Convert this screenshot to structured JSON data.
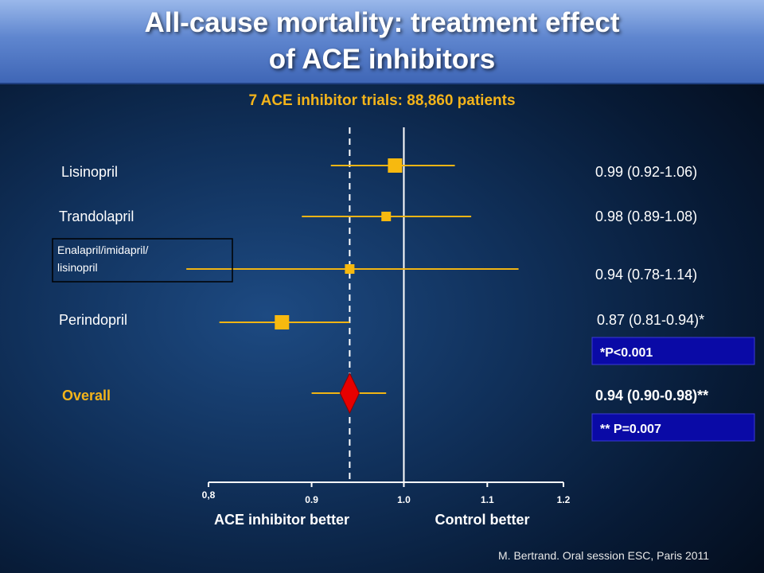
{
  "title": "All-cause mortality: treatment effect\nof ACE inhibitors",
  "subtitle": "7 ACE inhibitor trials: 88,860 patients",
  "source": "M. Bertrand. Oral session ESC, Paris 2011",
  "colors": {
    "marker": "#f7b90f",
    "ci_line": "#f0b414",
    "overall_marker": "#e60000",
    "axis": "#ffffff",
    "dashed_line": "#ffffff",
    "highlight_text": "#f4b41a",
    "pvalue_box": "#0a0aa6"
  },
  "chart_data": {
    "type": "forest",
    "xlim": [
      0.8,
      1.2
    ],
    "x_ticks": [
      0.8,
      0.9,
      1.0,
      1.1,
      1.2
    ],
    "x_tick_labels": [
      "0,8",
      "0.9",
      "1.0",
      "1.1",
      "1.2"
    ],
    "x_scale": "log",
    "reference_line": 1.0,
    "overall_reference_line": 0.94,
    "left_label": "ACE inhibitor better",
    "right_label": "Control better",
    "rows": [
      {
        "name": "Lisinopril",
        "hr": 0.99,
        "lo": 0.92,
        "hi": 1.06,
        "display": "0.99 (0.92-1.06)",
        "marker": "square",
        "size": "large"
      },
      {
        "name": "Trandolapril",
        "hr": 0.98,
        "lo": 0.89,
        "hi": 1.08,
        "display": "0.98 (0.89-1.08)",
        "marker": "square",
        "size": "small"
      },
      {
        "name": "Enalapril/imidapril/\nlisinopril",
        "hr": 0.94,
        "lo": 0.78,
        "hi": 1.14,
        "display": "0.94 (0.78-1.14)",
        "marker": "square",
        "size": "small"
      },
      {
        "name": "Perindopril",
        "hr": 0.87,
        "lo": 0.81,
        "hi": 0.94,
        "display": "0.87 (0.81-0.94)*",
        "marker": "square",
        "size": "large",
        "note": "*P<0.001"
      },
      {
        "name": "Overall",
        "hr": 0.94,
        "lo": 0.9,
        "hi": 0.98,
        "display": "0.94 (0.90-0.98)**",
        "marker": "diamond",
        "size": "large",
        "note": "** P=0.007"
      }
    ]
  }
}
